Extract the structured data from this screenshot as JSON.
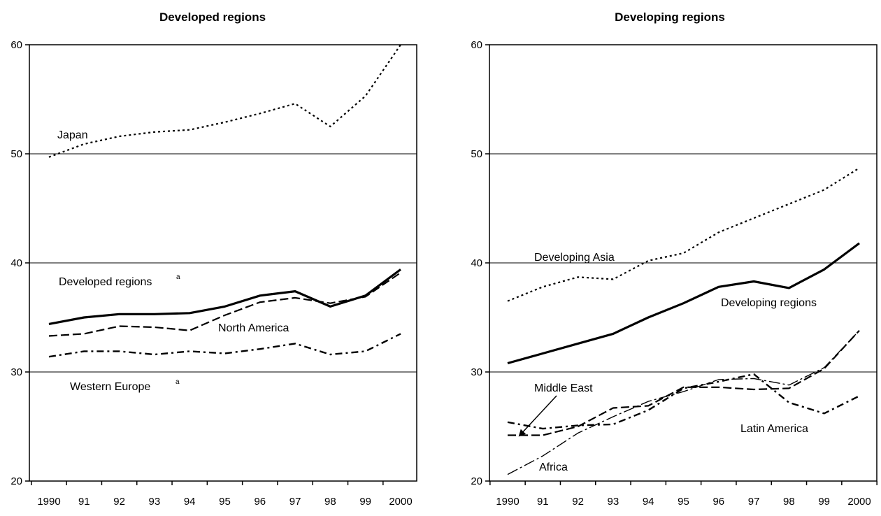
{
  "chart_data": [
    {
      "type": "line",
      "title": "Developed regions",
      "xlabel": "",
      "ylabel": "",
      "x_ticks": [
        "1990",
        "91",
        "92",
        "93",
        "94",
        "95",
        "96",
        "97",
        "98",
        "99",
        "2000"
      ],
      "y_ticks": [
        "20",
        "30",
        "40",
        "50",
        "60"
      ],
      "ylim": [
        20,
        60
      ],
      "grid": "horizontal at 30, 40, 50",
      "legend": "none (inline labels)",
      "series": [
        {
          "name": "Japan",
          "style": "dotted",
          "values": [
            49.7,
            50.9,
            51.6,
            52.0,
            52.2,
            52.9,
            53.7,
            54.6,
            52.5,
            55.3,
            60.0
          ]
        },
        {
          "name": "Developed regions",
          "name_sup": "a",
          "style": "solid-thick",
          "values": [
            34.4,
            35.0,
            35.3,
            35.3,
            35.4,
            36.0,
            37.0,
            37.4,
            36.0,
            37.0,
            39.4
          ]
        },
        {
          "name": "North America",
          "style": "dashed",
          "values": [
            33.3,
            33.5,
            34.2,
            34.1,
            33.8,
            35.2,
            36.4,
            36.8,
            36.3,
            36.9,
            39.1
          ]
        },
        {
          "name": "Western Europe",
          "name_sup": "a",
          "style": "dashdot",
          "values": [
            31.4,
            31.9,
            31.9,
            31.6,
            31.9,
            31.7,
            32.1,
            32.6,
            31.6,
            31.9,
            33.5
          ]
        }
      ]
    },
    {
      "type": "line",
      "title": "Developing regions",
      "xlabel": "",
      "ylabel": "",
      "x_ticks": [
        "1990",
        "91",
        "92",
        "93",
        "94",
        "95",
        "96",
        "97",
        "98",
        "99",
        "2000"
      ],
      "y_ticks": [
        "20",
        "30",
        "40",
        "50",
        "60"
      ],
      "ylim": [
        20,
        60
      ],
      "grid": "horizontal at 30, 40, 50",
      "legend": "none (inline labels)",
      "series": [
        {
          "name": "Developing Asia",
          "style": "dotted",
          "values": [
            36.5,
            37.8,
            38.7,
            38.5,
            40.2,
            40.9,
            42.8,
            44.1,
            45.4,
            46.7,
            48.7
          ]
        },
        {
          "name": "Developing regions",
          "style": "solid-thick",
          "values": [
            30.8,
            31.7,
            32.6,
            33.5,
            35.0,
            36.3,
            37.8,
            38.3,
            37.7,
            39.4,
            41.8
          ]
        },
        {
          "name": "Middle East",
          "style": "dashed",
          "values": [
            24.2,
            24.2,
            25.0,
            26.7,
            26.9,
            28.6,
            28.6,
            28.4,
            28.5,
            30.3,
            33.8
          ]
        },
        {
          "name": "Latin America",
          "style": "dashdot",
          "values": [
            25.4,
            24.8,
            25.1,
            25.2,
            26.5,
            28.5,
            29.1,
            29.8,
            27.2,
            26.2,
            27.8
          ]
        },
        {
          "name": "Africa",
          "style": "longdashdot",
          "values": [
            20.6,
            22.3,
            24.4,
            25.9,
            27.3,
            28.2,
            29.3,
            29.4,
            28.8,
            30.4,
            33.8
          ]
        }
      ]
    }
  ]
}
